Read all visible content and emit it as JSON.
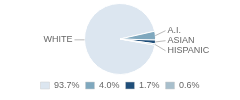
{
  "chart_data": {
    "type": "pie",
    "categories": [
      "WHITE",
      "A.I.",
      "ASIAN",
      "HISPANIC"
    ],
    "values": [
      93.7,
      4.0,
      1.7,
      0.6
    ],
    "value_labels": [
      "93.7%",
      "4.0%",
      "1.7%",
      "0.6%"
    ],
    "colors": [
      "#dce6f0",
      "#7fa8be",
      "#1f4e79",
      "#a8bfcc"
    ],
    "legend": "bottom"
  }
}
